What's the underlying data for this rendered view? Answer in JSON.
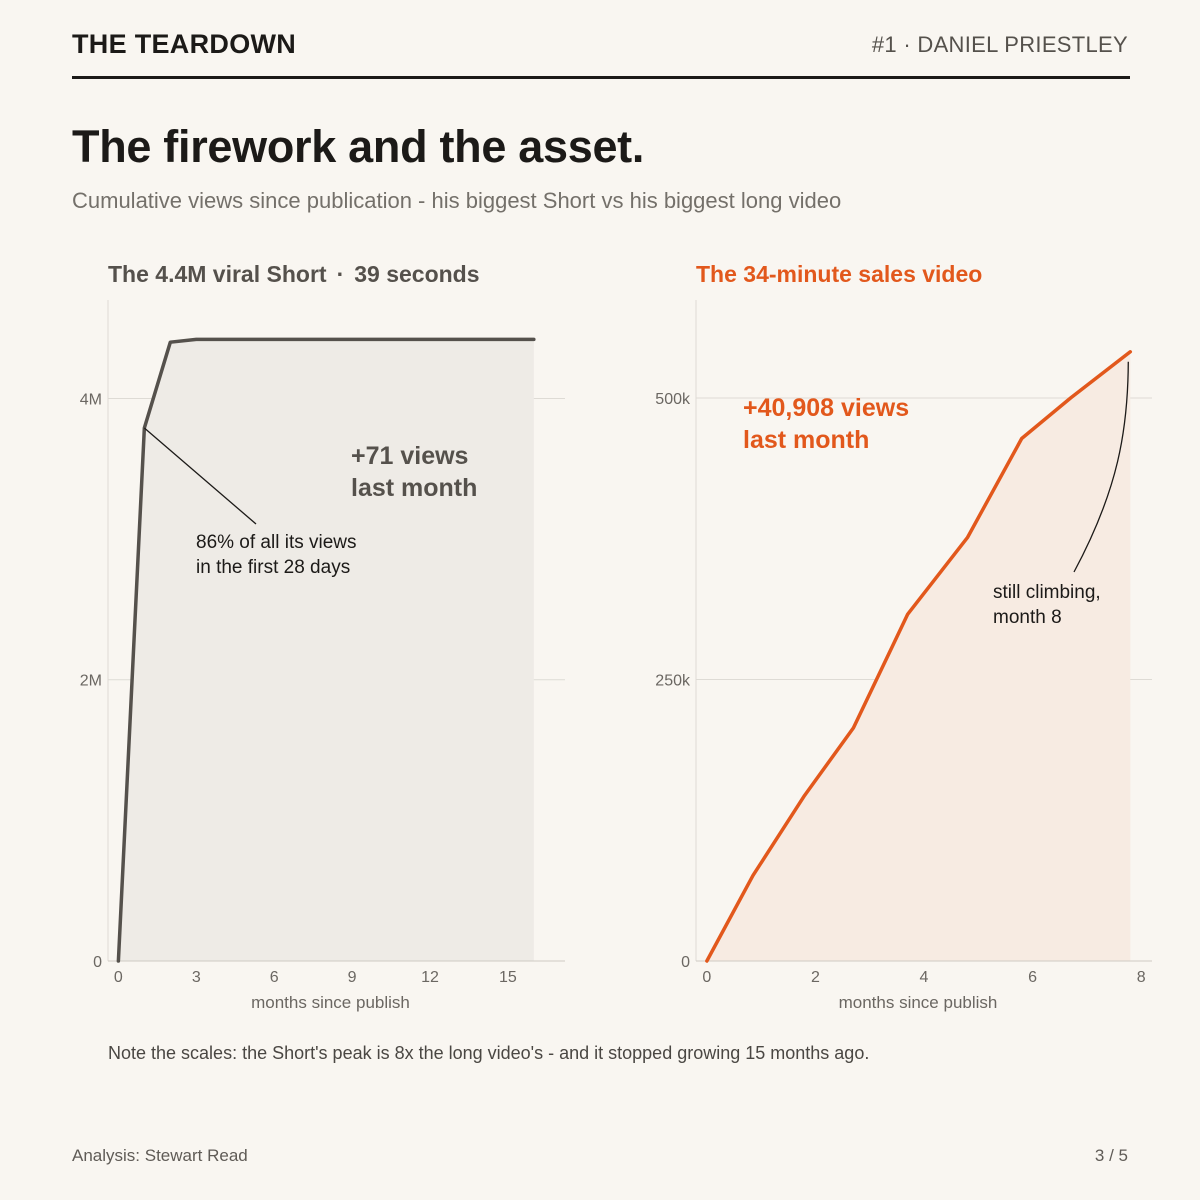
{
  "header": {
    "brand": "THE TEARDOWN",
    "issue": "#1 · DANIEL PRIESTLEY"
  },
  "title": "The firework and the asset.",
  "subtitle": "Cumulative views since publication - his biggest Short vs his biggest long video",
  "note": "Note the scales: the Short's peak is 8x the long video's - and it stopped growing 15 months ago.",
  "footer": {
    "credit": "Analysis: Stewart Read",
    "page": "3 / 5"
  },
  "colors": {
    "short_line": "#55514c",
    "short_fill": "#eeebe6",
    "long_line": "#e2581c",
    "long_fill": "#f7ebe2",
    "grid": "#dedbd5",
    "background": "#f9f6f1"
  },
  "chart_data": [
    {
      "type": "area",
      "title_main": "The 4.4M viral Short",
      "title_sep": "·",
      "title_sub": "39 seconds",
      "xlabel": "months since publish",
      "ylabel": "",
      "xlim": [
        -0.4,
        17.2
      ],
      "ylim": [
        0,
        4700000
      ],
      "xticks": [
        0,
        3,
        6,
        9,
        12,
        15
      ],
      "xtick_labels": [
        "0",
        "3",
        "6",
        "9",
        "12",
        "15"
      ],
      "yticks": [
        0,
        2000000,
        4000000
      ],
      "ytick_labels": [
        "0",
        "2M",
        "4M"
      ],
      "grid": "horizontal",
      "x": [
        0,
        1,
        2,
        3,
        4,
        6,
        8,
        10,
        12,
        14,
        16
      ],
      "values": [
        0,
        3790000,
        4400000,
        4420000,
        4420000,
        4420000,
        4420000,
        4420000,
        4420000,
        4420000,
        4420000
      ],
      "callout": [
        "+71 views",
        "last month"
      ],
      "annotation": {
        "lines": [
          "86% of all its views",
          "in the first 28 days"
        ],
        "target_x": 1,
        "target_y": 3790000
      }
    },
    {
      "type": "area",
      "title": "The 34-minute sales video",
      "xlabel": "months since publish",
      "ylabel": "",
      "xlim": [
        -0.2,
        8.2
      ],
      "ylim": [
        0,
        587000
      ],
      "xticks": [
        0,
        2,
        4,
        6,
        8
      ],
      "xtick_labels": [
        "0",
        "2",
        "4",
        "6",
        "8"
      ],
      "yticks": [
        0,
        250000,
        500000
      ],
      "ytick_labels": [
        "0",
        "250k",
        "500k"
      ],
      "grid": "horizontal",
      "x": [
        0,
        0.85,
        1.8,
        2.7,
        3.7,
        4.8,
        5.8,
        6.7,
        7.8
      ],
      "values": [
        0,
        76000,
        147000,
        207000,
        308000,
        376000,
        464000,
        500000,
        541000
      ],
      "callout": [
        "+40,908 views",
        "last month"
      ],
      "annotation": {
        "lines": [
          "still climbing,",
          "month 8"
        ],
        "target_x": 7.8,
        "target_y": 541000
      }
    }
  ]
}
